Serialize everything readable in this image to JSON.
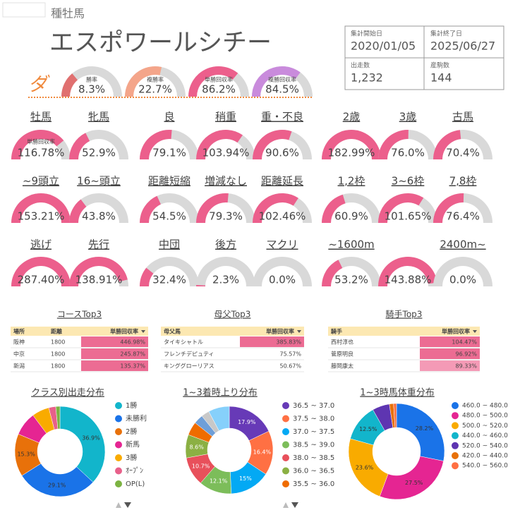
{
  "header": {
    "subtitle": "種牡馬",
    "title": "エスポワールシチー"
  },
  "summary": [
    {
      "label": "集計開始日",
      "value": "2020/01/05"
    },
    {
      "label": "集計終了日",
      "value": "2025/06/27"
    },
    {
      "label": "出走数",
      "value": "1,232"
    },
    {
      "label": "産駒数",
      "value": "144"
    }
  ],
  "surface": {
    "label": "ダ",
    "gauges": [
      {
        "label": "勝率",
        "value": 8.3,
        "value_label": "8.3%",
        "max": 30,
        "color": "#e07070"
      },
      {
        "label": "複勝率",
        "value": 22.7,
        "value_label": "22.7%",
        "max": 40,
        "color": "#f4a58a"
      },
      {
        "label": "単勝回収率",
        "value": 86.2,
        "value_label": "86.2%",
        "max": 120,
        "color": "#ec5f8c"
      },
      {
        "label": "複勝回収率",
        "value": 84.5,
        "value_label": "84.5%",
        "max": 120,
        "color": "#c98bdc"
      }
    ]
  },
  "stats": {
    "gauge_max": 150,
    "color": "#ec5f8c",
    "track_color": "#d9d9d9",
    "gauge_caption": "単勝回収率",
    "rows": [
      [
        {
          "label": "牡馬",
          "value": 116.78,
          "value_label": "116.78%"
        },
        {
          "label": "牝馬",
          "value": 52.9,
          "value_label": "52.9%"
        },
        {
          "label": "良",
          "value": 79.1,
          "value_label": "79.1%"
        },
        {
          "label": "稍重",
          "value": 103.94,
          "value_label": "103.94%"
        },
        {
          "label": "重・不良",
          "value": 90.6,
          "value_label": "90.6%"
        },
        {
          "label": "2歳",
          "value": 182.99,
          "value_label": "182.99%"
        },
        {
          "label": "3歳",
          "value": 76.0,
          "value_label": "76.0%"
        },
        {
          "label": "古馬",
          "value": 70.4,
          "value_label": "70.4%"
        }
      ],
      [
        {
          "label": "~9頭立",
          "value": 153.21,
          "value_label": "153.21%"
        },
        {
          "label": "16~頭立",
          "value": 43.8,
          "value_label": "43.8%"
        },
        {
          "label": "距離短縮",
          "value": 54.5,
          "value_label": "54.5%"
        },
        {
          "label": "増減なし",
          "value": 79.3,
          "value_label": "79.3%"
        },
        {
          "label": "距離延長",
          "value": 102.46,
          "value_label": "102.46%"
        },
        {
          "label": "1,2枠",
          "value": 60.9,
          "value_label": "60.9%"
        },
        {
          "label": "3~6枠",
          "value": 101.65,
          "value_label": "101.65%"
        },
        {
          "label": "7,8枠",
          "value": 76.4,
          "value_label": "76.4%"
        }
      ],
      [
        {
          "label": "逃げ",
          "value": 287.4,
          "value_label": "287.40%"
        },
        {
          "label": "先行",
          "value": 138.91,
          "value_label": "138.91%"
        },
        {
          "label": "中団",
          "value": 32.4,
          "value_label": "32.4%"
        },
        {
          "label": "後方",
          "value": 2.3,
          "value_label": "2.3%"
        },
        {
          "label": "マクリ",
          "value": 0.0,
          "value_label": "0.0%"
        },
        {
          "label": "~1600m",
          "value": 53.2,
          "value_label": "53.2%"
        },
        {
          "label": null,
          "value": 143.88,
          "value_label": "143.88%"
        },
        {
          "label": "2400m~",
          "value": 0.0,
          "value_label": "0.0%"
        }
      ]
    ]
  },
  "tables": [
    {
      "title": "コースTop3",
      "columns": [
        "場所",
        "距離",
        "単勝回収率"
      ],
      "rows": [
        [
          "阪神",
          "1800",
          "446.98%"
        ],
        [
          "中京",
          "1800",
          "245.87%"
        ],
        [
          "新潟",
          "1800",
          "135.37%"
        ]
      ],
      "cell_colors": [
        "#ec6c93",
        "#ec6c93",
        "#ec6c93"
      ]
    },
    {
      "title": "母父Top3",
      "columns": [
        "母父馬",
        "単勝回収率"
      ],
      "rows": [
        [
          "タイキシャトル",
          "385.83%"
        ],
        [
          "フレンチデピュティ",
          "75.57%"
        ],
        [
          "キンググローリアス",
          "50.67%"
        ]
      ],
      "cell_colors": [
        "#ec6c93",
        null,
        null
      ]
    },
    {
      "title": "騎手Top3",
      "columns": [
        "騎手",
        "単勝回収率"
      ],
      "rows": [
        [
          "西村淳也",
          "104.47%"
        ],
        [
          "菅原明良",
          "96.92%"
        ],
        [
          "藤岡康太",
          "89.33%"
        ]
      ],
      "cell_colors": [
        "#ec6c93",
        "#ec6c93",
        "#f49ab6"
      ]
    }
  ],
  "chart_data": [
    {
      "type": "donut",
      "title": "クラス別出走分布",
      "categories": [
        "1勝",
        "未勝利",
        "2勝",
        "新馬",
        "3勝",
        "ｵｰﾌﾟﾝ",
        "OP(L)"
      ],
      "values": [
        36.9,
        29.1,
        15.3,
        8.5,
        6.2,
        2.5,
        1.5
      ],
      "value_labels": [
        "36.9%",
        "29.1%",
        "15.3%",
        null,
        null,
        null,
        null
      ],
      "colors": [
        "#12b5cb",
        "#1a73e8",
        "#e8710a",
        "#e52592",
        "#f9ab00",
        "#e8608a",
        "#7cb342"
      ],
      "label_color": "#333333"
    },
    {
      "type": "donut",
      "title": "1~3着時上り分布",
      "categories": [
        "36.5 ~ 37.0",
        "37.5 ~ 38.0",
        "37.0 ~ 37.5",
        "38.5 ~ 39.0",
        "38.0 ~ 38.5",
        "36.0 ~ 36.5",
        "35.5 ~ 36.0",
        null,
        null,
        null
      ],
      "values": [
        17.9,
        16.4,
        15,
        12.1,
        10.7,
        8.6,
        5,
        3.5,
        3,
        7.8
      ],
      "value_labels": [
        "17.9%",
        "16.4%",
        "15%",
        "12.1%",
        "10.7%",
        "8.6%",
        null,
        null,
        null,
        null
      ],
      "colors": [
        "#673ab7",
        "#ff7043",
        "#03a9f4",
        "#7cbd5a",
        "#e8505b",
        "#8bb043",
        "#ef6c00",
        "#6f9fd8",
        "#c8c8c8",
        "#86d0fb"
      ],
      "label_color": "#ffffff"
    },
    {
      "type": "donut",
      "title": "1~3時馬体重分布",
      "categories": [
        "460.0 ~ 480.0",
        "480.0 ~ 500.0",
        "500.0 ~ 520.0",
        "440.0 ~ 460.0",
        "520.0 ~ 540.0",
        "420.0 ~ 440.0",
        "540.0 ~ 560.0"
      ],
      "values": [
        28.2,
        27.5,
        23.6,
        12.5,
        5.8,
        1.4,
        1.0
      ],
      "value_labels": [
        "28.2%",
        "27.5%",
        "23.6%",
        "12.5%",
        null,
        null,
        null
      ],
      "colors": [
        "#1a73e8",
        "#e52592",
        "#f9ab00",
        "#12b5cb",
        "#5e35b1",
        "#e8710a",
        "#ff7043"
      ],
      "label_color": "#333333"
    }
  ]
}
